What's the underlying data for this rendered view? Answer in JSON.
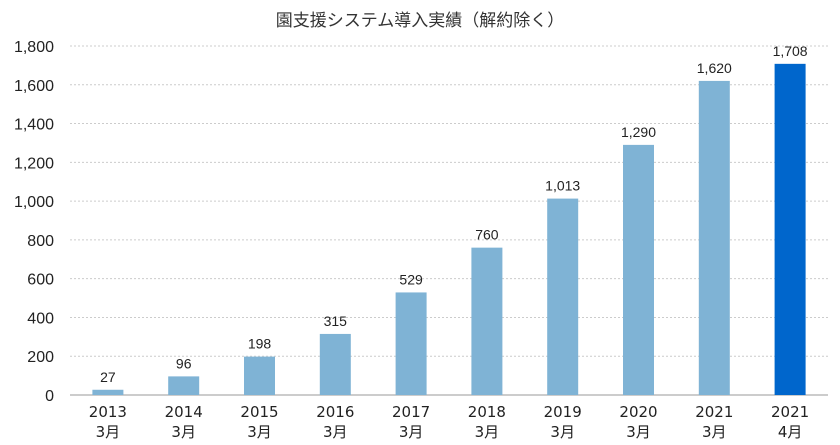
{
  "chart_data": {
    "type": "bar",
    "title": "園支援システム導入実績（解約除く）",
    "categories": [
      [
        "2013",
        "3月"
      ],
      [
        "2014",
        "3月"
      ],
      [
        "2015",
        "3月"
      ],
      [
        "2016",
        "3月"
      ],
      [
        "2017",
        "3月"
      ],
      [
        "2018",
        "3月"
      ],
      [
        "2019",
        "3月"
      ],
      [
        "2020",
        "3月"
      ],
      [
        "2021",
        "3月"
      ],
      [
        "2021",
        "4月"
      ]
    ],
    "values": [
      27,
      96,
      198,
      315,
      529,
      760,
      1013,
      1290,
      1620,
      1708
    ],
    "data_labels": [
      "27",
      "96",
      "198",
      "315",
      "529",
      "760",
      "1,013",
      "1,290",
      "1,620",
      "1,708"
    ],
    "ylim": [
      0,
      1800
    ],
    "yticks": [
      0,
      200,
      400,
      600,
      800,
      1000,
      1200,
      1400,
      1600,
      1800
    ],
    "ytick_labels": [
      "0",
      "200",
      "400",
      "600",
      "800",
      "1,000",
      "1,200",
      "1,400",
      "1,600",
      "1,800"
    ],
    "grid": true,
    "legend": "none",
    "colors": {
      "bar": "#7fb3d5",
      "highlight_bar": "#0066cc",
      "gridline": "#cccccc",
      "text": "#222222"
    },
    "highlight_index": 9
  }
}
